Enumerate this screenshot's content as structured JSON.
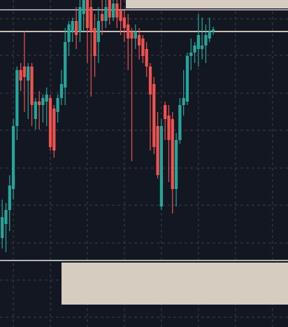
{
  "chart_data": {
    "type": "candlestick",
    "x": [
      0,
      1,
      2,
      3,
      4,
      5,
      6,
      7,
      8,
      9,
      10,
      11,
      12,
      13,
      14,
      15,
      16,
      17,
      18,
      19,
      20,
      21,
      22,
      23,
      24,
      25,
      26,
      27,
      28,
      29,
      30,
      31,
      32,
      33,
      34,
      35,
      36,
      37,
      38,
      39,
      40,
      41,
      42,
      43,
      44,
      45,
      46,
      47,
      48,
      49,
      50,
      51,
      52,
      53,
      54,
      55,
      56,
      57
    ],
    "open": [
      127,
      147,
      167,
      197,
      287,
      367,
      372,
      352,
      372,
      297,
      322,
      317,
      322,
      327,
      312,
      307,
      327,
      342,
      407,
      422,
      437,
      422,
      447,
      467,
      457,
      427,
      407,
      447,
      437,
      467,
      442,
      462,
      452,
      442,
      432,
      422,
      412,
      417,
      412,
      397,
      372,
      347,
      287,
      172,
      317,
      302,
      297,
      197,
      267,
      317,
      322,
      387,
      392,
      397,
      397,
      402,
      412,
      422
    ],
    "high": [
      182,
      177,
      217,
      297,
      372,
      377,
      422,
      377,
      377,
      327,
      337,
      332,
      342,
      332,
      317,
      332,
      367,
      427,
      437,
      442,
      457,
      467,
      467,
      467,
      467,
      447,
      457,
      467,
      467,
      467,
      467,
      467,
      467,
      452,
      447,
      427,
      432,
      427,
      417,
      407,
      377,
      357,
      307,
      297,
      322,
      317,
      307,
      277,
      327,
      367,
      392,
      412,
      407,
      447,
      442,
      432,
      442,
      429
    ],
    "low": [
      112,
      107,
      137,
      182,
      267,
      337,
      307,
      297,
      287,
      282,
      282,
      292,
      287,
      252,
      242,
      292,
      317,
      317,
      387,
      407,
      397,
      407,
      422,
      377,
      329,
      357,
      377,
      417,
      427,
      432,
      437,
      427,
      417,
      407,
      367,
      237,
      397,
      382,
      377,
      357,
      252,
      247,
      212,
      167,
      267,
      207,
      162,
      172,
      262,
      302,
      317,
      367,
      377,
      372,
      382,
      377,
      407,
      417
    ],
    "close": [
      157,
      167,
      202,
      287,
      367,
      352,
      357,
      372,
      317,
      322,
      317,
      327,
      332,
      257,
      252,
      327,
      347,
      407,
      432,
      437,
      417,
      457,
      467,
      427,
      422,
      387,
      437,
      437,
      457,
      442,
      462,
      442,
      437,
      427,
      412,
      412,
      422,
      402,
      387,
      372,
      332,
      257,
      217,
      287,
      297,
      267,
      197,
      267,
      317,
      327,
      387,
      392,
      402,
      417,
      402,
      417,
      422,
      425
    ],
    "up_color": "#26a69a",
    "down_color": "#ef5350",
    "xlim": [
      -0.6,
      77.2
    ],
    "xticks": [
      3,
      13,
      23,
      33,
      43,
      53,
      63,
      73
    ],
    "ylim": [
      0,
      467
    ],
    "yticks": [
      14,
      67,
      120,
      174,
      227,
      281,
      334,
      388,
      440
    ],
    "grid": true
  }
}
